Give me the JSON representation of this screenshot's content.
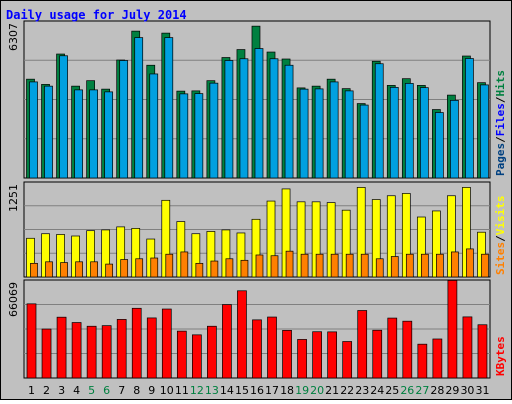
{
  "chart_data": {
    "type": "bar",
    "title": "Daily usage for July 2014",
    "categories": [
      "1",
      "2",
      "3",
      "4",
      "5",
      "6",
      "7",
      "8",
      "9",
      "10",
      "11",
      "12",
      "13",
      "14",
      "15",
      "16",
      "17",
      "18",
      "19",
      "20",
      "21",
      "22",
      "23",
      "24",
      "25",
      "26",
      "27",
      "28",
      "29",
      "30",
      "31"
    ],
    "weekend_days": [
      "5",
      "6",
      "12",
      "13",
      "19",
      "20",
      "26",
      "27"
    ],
    "panels": [
      {
        "id": "hits",
        "ymax_label": "6307",
        "ymax": 6307,
        "legend": [
          "Pages",
          "/",
          "Files",
          "/",
          "Hits"
        ],
        "series": [
          {
            "name": "Hits",
            "color": "#008040",
            "values": [
              3970,
              3760,
              4980,
              3690,
              3910,
              3570,
              4740,
              5900,
              4530,
              5820,
              3490,
              3500,
              3910,
              4840,
              5160,
              6100,
              5060,
              4780,
              3620,
              3690,
              3970,
              3590,
              2990,
              4690,
              3720,
              3990,
              3720,
              2750,
              3330,
              4900,
              3830
            ]
          },
          {
            "name": "Files",
            "color": "#00a0e0",
            "values": [
              3860,
              3690,
              4910,
              3540,
              3540,
              3460,
              4720,
              5640,
              4180,
              5640,
              3380,
              3390,
              3810,
              4720,
              4790,
              5200,
              4790,
              4530,
              3570,
              3580,
              3860,
              3500,
              2930,
              4590,
              3640,
              3800,
              3630,
              2630,
              3120,
              4800,
              3740
            ]
          },
          {
            "name": "Pages",
            "color": "#004080",
            "values": [
              3300,
              3200,
              4300,
              3000,
              3000,
              3000,
              4200,
              5100,
              3600,
              5100,
              2900,
              2900,
              3300,
              4200,
              4200,
              4600,
              4200,
              4000,
              3100,
              3100,
              3300,
              3000,
              2500,
              4000,
              3100,
              3300,
              3100,
              2200,
              2700,
              4200,
              3200
            ]
          }
        ]
      },
      {
        "id": "visits",
        "ymax_label": "1251",
        "ymax": 1251,
        "legend": [
          "Sites",
          "/",
          "Visits"
        ],
        "series": [
          {
            "name": "Visits",
            "color": "#ffff00",
            "values": [
              510,
              570,
              560,
              540,
              610,
              620,
              660,
              640,
              500,
              1010,
              730,
              570,
              600,
              620,
              580,
              760,
              1000,
              1160,
              990,
              990,
              980,
              880,
              1180,
              1020,
              1070,
              1100,
              790,
              870,
              1070,
              1180,
              590
            ]
          },
          {
            "name": "Sites",
            "color": "#ff8000",
            "values": [
              180,
              200,
              190,
              200,
              200,
              170,
              230,
              240,
              250,
              300,
              330,
              180,
              210,
              240,
              220,
              290,
              280,
              340,
              300,
              300,
              300,
              300,
              300,
              240,
              270,
              300,
              300,
              300,
              330,
              370,
              300
            ]
          }
        ]
      },
      {
        "id": "kbytes",
        "ymax_label": "66069",
        "ymax": 66069,
        "legend": [
          "KBytes"
        ],
        "series": [
          {
            "name": "KBytes",
            "color": "#ff0000",
            "values": [
              50000,
              33000,
              41000,
              37400,
              34900,
              35300,
              39500,
              47000,
              40500,
              46500,
              31600,
              29100,
              34900,
              49500,
              58800,
              39200,
              41100,
              32100,
              26000,
              31200,
              31100,
              24600,
              45500,
              32200,
              40400,
              38300,
              22800,
              26300,
              65800,
              41200,
              35900
            ]
          }
        ]
      }
    ],
    "colors": {
      "title": "#0000ff",
      "weekday_label": "#000000",
      "weekend_label": "#008040",
      "background": "#c0c0c0",
      "gridline": "#808080"
    }
  }
}
